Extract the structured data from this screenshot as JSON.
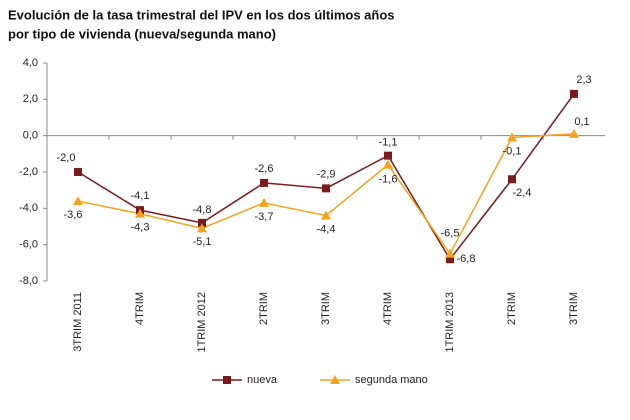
{
  "chart_data": {
    "type": "line",
    "title": [
      "Evolución de la tasa trimestral del IPV en los dos últimos años",
      "por tipo de vivienda (nueva/segunda mano)"
    ],
    "categories": [
      "3TRIM 2011",
      "4TRIM",
      "1TRIM 2012",
      "2TRIM",
      "3TRIM",
      "4TRIM",
      "1TRIM 2013",
      "2TRIM",
      "3TRIM"
    ],
    "series": [
      {
        "name": "nueva",
        "color": "#7b1a1a",
        "marker": "square",
        "values": [
          -2.0,
          -4.1,
          -4.8,
          -2.6,
          -2.9,
          -1.1,
          -6.8,
          -2.4,
          2.3
        ],
        "value_labels": [
          "-2,0",
          "-4,1",
          "-4,8",
          "-2,6",
          "-2,9",
          "-1,1",
          "-6,8",
          "-2,4",
          "2,3"
        ]
      },
      {
        "name": "segunda mano",
        "color": "#f5a21e",
        "marker": "triangle",
        "values": [
          -3.6,
          -4.3,
          -5.1,
          -3.7,
          -4.4,
          -1.6,
          -6.5,
          -0.1,
          0.1
        ],
        "value_labels": [
          "-3,6",
          "-4,3",
          "-5,1",
          "-3,7",
          "-4,4",
          "-1,6",
          "-6,5",
          "-0,1",
          "0,1"
        ]
      }
    ],
    "ylim": [
      -8,
      4
    ],
    "yticks": [
      {
        "value": -8,
        "label": "-8,0"
      },
      {
        "value": -6,
        "label": "-6,0"
      },
      {
        "value": -4,
        "label": "-4,0"
      },
      {
        "value": -2,
        "label": "-2,0"
      },
      {
        "value": 0,
        "label": "0,0"
      },
      {
        "value": 2,
        "label": "2,0"
      },
      {
        "value": 4,
        "label": "4,0"
      }
    ],
    "grid": false,
    "legend": "bottom"
  }
}
